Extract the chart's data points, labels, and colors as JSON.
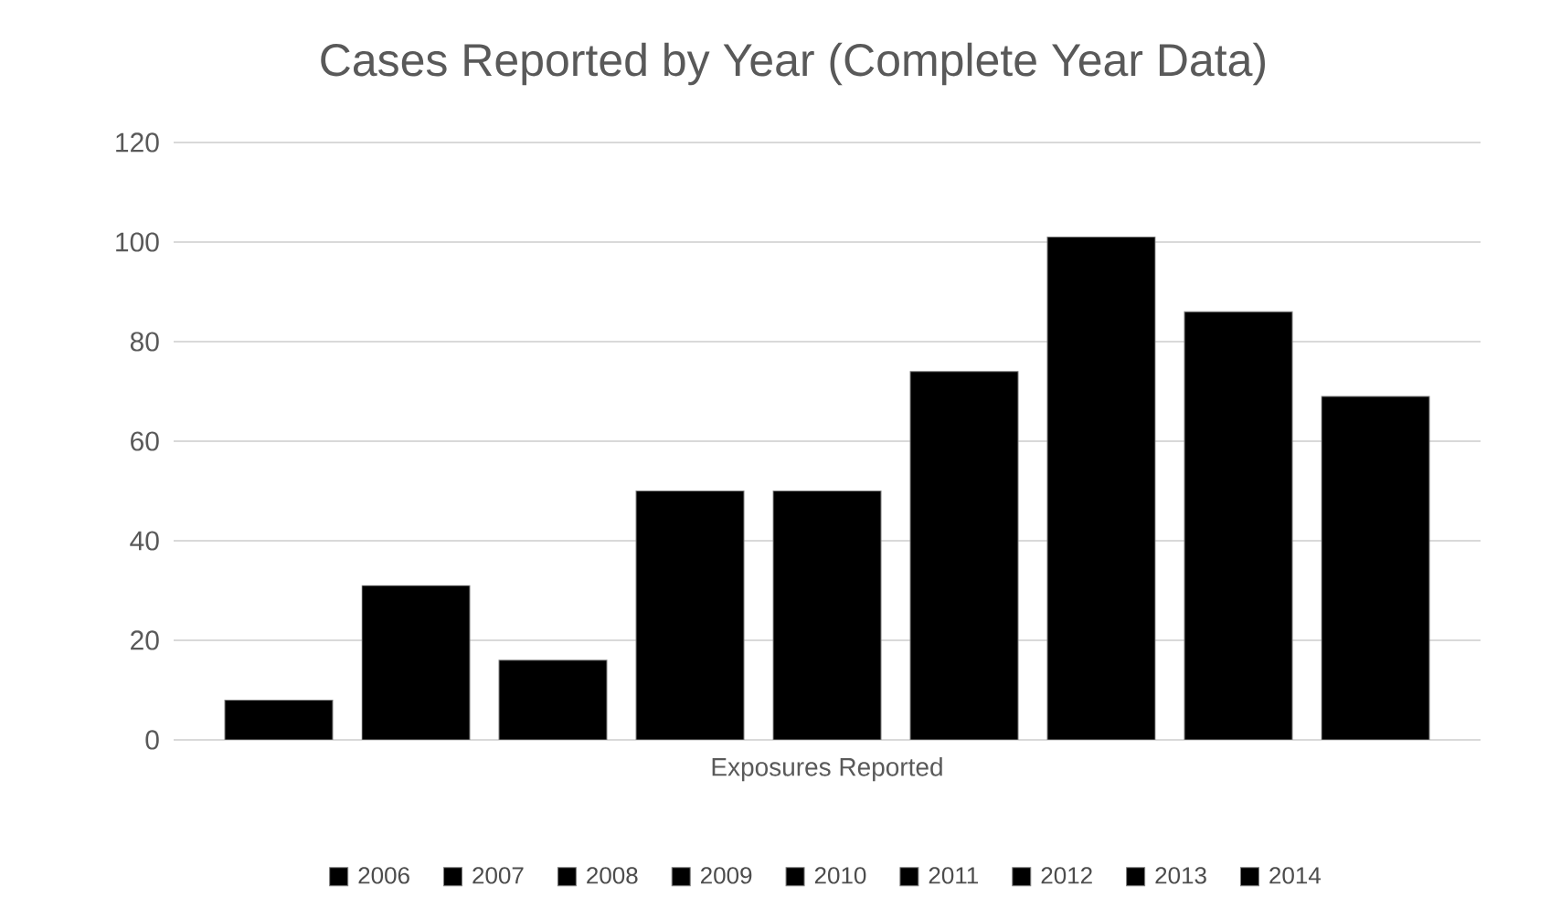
{
  "chart_data": {
    "type": "bar",
    "title": "Cases Reported by Year (Complete Year Data)",
    "categories": [
      "Exposures Reported"
    ],
    "series": [
      {
        "name": "2006",
        "color": "#000000",
        "values": [
          8
        ]
      },
      {
        "name": "2007",
        "color": "#000000",
        "values": [
          31
        ]
      },
      {
        "name": "2008",
        "color": "#000000",
        "values": [
          16
        ]
      },
      {
        "name": "2009",
        "color": "#000000",
        "values": [
          50
        ]
      },
      {
        "name": "2010",
        "color": "#000000",
        "values": [
          50
        ]
      },
      {
        "name": "2011",
        "color": "#000000",
        "values": [
          74
        ]
      },
      {
        "name": "2012",
        "color": "#000000",
        "values": [
          101
        ]
      },
      {
        "name": "2013",
        "color": "#000000",
        "values": [
          86
        ]
      },
      {
        "name": "2014",
        "color": "#000000",
        "values": [
          69
        ]
      }
    ],
    "ylim": [
      0,
      120
    ],
    "yticks": [
      0,
      20,
      40,
      60,
      80,
      100,
      120
    ],
    "grid": "y",
    "legend": "bottom"
  }
}
